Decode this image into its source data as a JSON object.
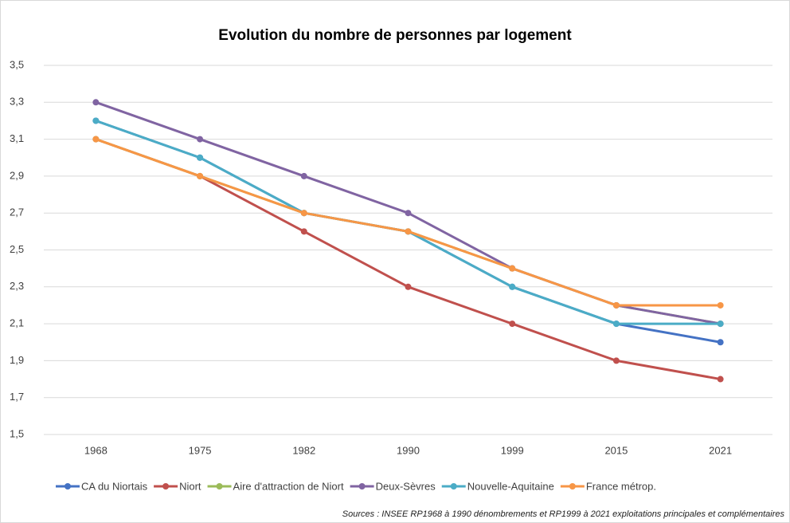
{
  "chart_data": {
    "type": "line",
    "title": "Evolution du nombre de personnes par logement",
    "categories": [
      "1968",
      "1975",
      "1982",
      "1990",
      "1999",
      "2015",
      "2021"
    ],
    "series": [
      {
        "name": "CA du Niortais",
        "color": "#4472c4",
        "values": [
          3.2,
          3.0,
          2.7,
          2.6,
          2.3,
          2.1,
          2.0
        ]
      },
      {
        "name": "Niort",
        "color": "#c0504d",
        "values": [
          3.1,
          2.9,
          2.6,
          2.3,
          2.1,
          1.9,
          1.8
        ]
      },
      {
        "name": "Aire d'attraction de Niort",
        "color": "#9bbb59",
        "values": [
          3.1,
          2.9,
          2.7,
          2.6,
          2.4,
          2.2,
          2.1
        ]
      },
      {
        "name": "Deux-Sèvres",
        "color": "#8064a2",
        "values": [
          3.3,
          3.1,
          2.9,
          2.7,
          2.4,
          2.2,
          2.1
        ]
      },
      {
        "name": "Nouvelle-Aquitaine",
        "color": "#4bacc6",
        "values": [
          3.2,
          3.0,
          2.7,
          2.6,
          2.3,
          2.1,
          2.1
        ]
      },
      {
        "name": "France métrop.",
        "color": "#f79646",
        "values": [
          3.1,
          2.9,
          2.7,
          2.6,
          2.4,
          2.2,
          2.2
        ]
      }
    ],
    "ylim": [
      1.5,
      3.5
    ],
    "yticks": [
      {
        "value": 1.5,
        "label": "1,5"
      },
      {
        "value": 1.7,
        "label": "1,7"
      },
      {
        "value": 1.9,
        "label": "1,9"
      },
      {
        "value": 2.1,
        "label": "2,1"
      },
      {
        "value": 2.3,
        "label": "2,3"
      },
      {
        "value": 2.5,
        "label": "2,5"
      },
      {
        "value": 2.7,
        "label": "2,7"
      },
      {
        "value": 2.9,
        "label": "2,9"
      },
      {
        "value": 3.1,
        "label": "3,1"
      },
      {
        "value": 3.3,
        "label": "3,3"
      },
      {
        "value": 3.5,
        "label": "3,5"
      }
    ],
    "grid": true,
    "legend": "bottom",
    "source": "Sources : INSEE RP1968 à 1990 dénombrements et RP1999 à 2021 exploitations principales et complémentaires"
  }
}
